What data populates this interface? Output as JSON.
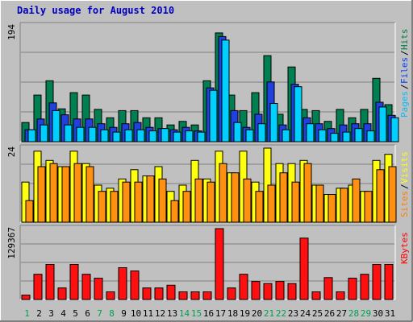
{
  "chart_data": {
    "type": "bar",
    "title": "Daily usage for August 2010",
    "categories": [
      "1",
      "2",
      "3",
      "4",
      "5",
      "6",
      "7",
      "8",
      "9",
      "10",
      "11",
      "12",
      "13",
      "14",
      "15",
      "16",
      "17",
      "18",
      "19",
      "20",
      "21",
      "22",
      "23",
      "24",
      "25",
      "26",
      "27",
      "28",
      "29",
      "30",
      "31"
    ],
    "weekend_days": [
      "1",
      "7",
      "8",
      "14",
      "15",
      "21",
      "22",
      "28",
      "29"
    ],
    "panels": [
      {
        "name": "top",
        "max_label": "194",
        "ylim": [
          0,
          194
        ],
        "right_labels": [
          "Pages",
          "Files",
          "Hits"
        ],
        "right_colors": [
          "#00c0ff",
          "#0040ff",
          "#008040"
        ],
        "series": [
          {
            "name": "Hits",
            "color": "#008050",
            "values": [
              32,
              78,
              102,
              55,
              82,
              78,
              54,
              40,
              52,
              52,
              40,
              40,
              28,
              34,
              28,
              102,
              182,
              78,
              52,
              82,
              144,
              46,
              125,
              54,
              52,
              34,
              54,
              40,
              54,
              106,
              62
            ]
          },
          {
            "name": "Files",
            "color": "#2040e0",
            "values": [
              20,
              38,
              65,
              45,
              38,
              38,
              30,
              24,
              30,
              32,
              24,
              22,
              20,
              24,
              18,
              90,
              176,
              52,
              24,
              46,
              100,
              28,
              96,
              40,
              30,
              22,
              28,
              30,
              30,
              66,
              44
            ]
          },
          {
            "name": "Pages",
            "color": "#00d0ff",
            "values": [
              20,
              28,
              52,
              28,
              24,
              24,
              20,
              16,
              20,
              20,
              18,
              22,
              16,
              18,
              16,
              86,
              170,
              32,
              20,
              30,
              64,
              20,
              92,
              30,
              20,
              14,
              16,
              22,
              18,
              58,
              40
            ]
          }
        ]
      },
      {
        "name": "mid",
        "max_label": "24",
        "ylim": [
          0,
          24
        ],
        "right_labels": [
          "Sites",
          "Visits"
        ],
        "right_colors": [
          "#ff8000",
          "#ffff00"
        ],
        "series": [
          {
            "name": "Visits",
            "color": "#ffff10",
            "values": [
              13,
              23,
              20,
              18,
              23,
              19,
              12,
              11,
              14,
              17,
              15,
              18,
              10,
              12,
              20,
              14,
              23,
              16,
              23,
              13,
              24,
              19,
              19,
              20,
              12,
              9,
              11,
              12,
              10,
              20,
              22
            ]
          },
          {
            "name": "Sites",
            "color": "#ff9010",
            "values": [
              7,
              18,
              19,
              18,
              19,
              18,
              10,
              10,
              13,
              13,
              15,
              14,
              7,
              10,
              14,
              13,
              19,
              16,
              14,
              10,
              12,
              16,
              13,
              19,
              12,
              9,
              11,
              14,
              10,
              17,
              18
            ]
          }
        ]
      },
      {
        "name": "bottom",
        "max_label": "129367",
        "ylim": [
          0,
          129367
        ],
        "right_labels": [
          "KBytes"
        ],
        "right_colors": [
          "#ff0000"
        ],
        "series": [
          {
            "name": "KBytes",
            "color": "#ff1010",
            "values": [
              8000,
              46000,
              64000,
              21000,
              64000,
              46000,
              39000,
              14000,
              58000,
              52000,
              21000,
              21000,
              26000,
              14000,
              14000,
              14000,
              129367,
              21000,
              46000,
              33000,
              29000,
              33000,
              29000,
              112000,
              14000,
              40000,
              14000,
              39000,
              46000,
              64000,
              64000
            ]
          }
        ]
      }
    ]
  }
}
